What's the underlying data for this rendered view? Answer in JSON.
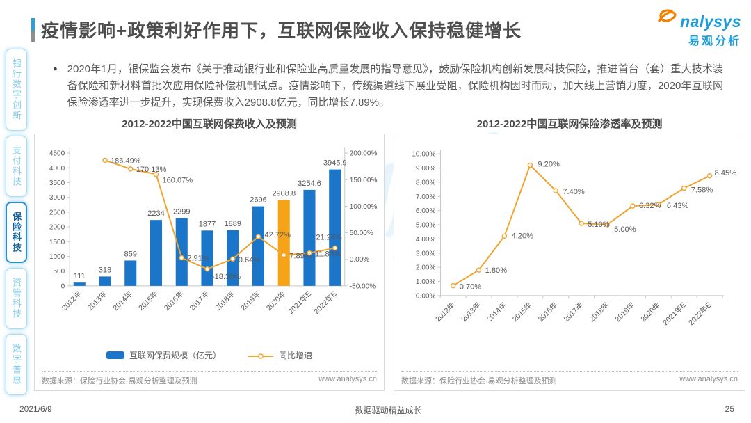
{
  "header": {
    "title": "疫情影响+政策利好作用下，互联网保险收入保持稳健增长"
  },
  "logo": {
    "brand": "analysys",
    "brand_rest": "nalysys",
    "brand_cn": "易观分析"
  },
  "sidebar": {
    "items": [
      {
        "label": "银行数字创新",
        "active": false
      },
      {
        "label": "支付科技",
        "active": false
      },
      {
        "label": "保险科技",
        "active": true
      },
      {
        "label": "资管科技",
        "active": false
      },
      {
        "label": "数字普惠",
        "active": false
      }
    ]
  },
  "bullet": {
    "marker": "●",
    "text": "2020年1月，银保监会发布《关于推动银行业和保险业高质量发展的指导意见》，鼓励保险机构创新发展科技保险，推进首台（套）重大技术装备保险和新材料首批次应用保险补偿机制试点。疫情影响下，传统渠道线下展业受阻，保险机构因时而动，加大线上营销力度，2020年互联网保险渗透率进一步提升，实现保费收入2908.8亿元，同比增长7.89%。"
  },
  "colors": {
    "bar_blue": "#1b75c8",
    "highlight_orange": "#f6a318",
    "line_orange": "#efa430",
    "logo_blue": "#1e9cd7"
  },
  "chart_data": [
    {
      "type": "bar",
      "title": "2012-2022中国互联网保费收入及预测",
      "categories": [
        "2012年",
        "2013年",
        "2014年",
        "2015年",
        "2016年",
        "2017年",
        "2018年",
        "2019年",
        "2020年",
        "2021年E",
        "2022年E"
      ],
      "series": [
        {
          "name": "互联网保费规模（亿元）",
          "type": "bar",
          "highlight_index": 8,
          "values": [
            111,
            318,
            859,
            2234,
            2299,
            1877,
            1889,
            2696,
            2908.8,
            3254.6,
            3945.9
          ],
          "labels": [
            "111",
            "318",
            "859",
            "2234",
            "2299",
            "1877",
            "1889",
            "2696",
            "2908.8",
            "3254.6",
            "3945.9"
          ]
        },
        {
          "name": "同比增速",
          "type": "line",
          "values": [
            null,
            186.49,
            170.13,
            160.07,
            2.91,
            -18.36,
            0.64,
            42.72,
            7.89,
            11.89,
            21.24
          ],
          "labels": [
            null,
            "186.49%",
            "170.13%",
            "160.07%",
            "2.91%",
            "-18.36%",
            "0.64%",
            "42.72%",
            "7.89%",
            "11.89%",
            "21.24%"
          ]
        }
      ],
      "y_left": {
        "ticks": [
          "4500",
          "4000",
          "3500",
          "3000",
          "2500",
          "2000",
          "1500",
          "1000",
          "500",
          "0"
        ],
        "tick_values": [
          4500,
          4000,
          3500,
          3000,
          2500,
          2000,
          1500,
          1000,
          500,
          0
        ],
        "min": 0,
        "max": 4500
      },
      "y_right": {
        "ticks": [
          "200.00%",
          "150.00%",
          "100.00%",
          "50.00%",
          "0.00%",
          "-50.00%"
        ],
        "tick_values": [
          200,
          150,
          100,
          50,
          0,
          -50
        ],
        "min": -50,
        "max": 200
      },
      "grid": false,
      "legend_position": "bottom",
      "source": "数据来源：保险行业协会·易观分析整理及预测",
      "website": "www.analysys.cn"
    },
    {
      "type": "line",
      "title": "2012-2022中国互联网保险渗透率及预测",
      "categories": [
        "2012年",
        "2013年",
        "2014年",
        "2015年",
        "2016年",
        "2017年",
        "2018年",
        "2019年",
        "2020年",
        "2021年E",
        "2022年E"
      ],
      "values": [
        0.7,
        1.8,
        4.2,
        9.2,
        7.4,
        5.1,
        5.0,
        6.32,
        6.43,
        7.58,
        8.45
      ],
      "labels": [
        "0.70%",
        "1.80%",
        "4.20%",
        "9.20%",
        "7.40%",
        "5.10%",
        "5.00%",
        "6.32%",
        "6.43%",
        "7.58%",
        "8.45%"
      ],
      "y": {
        "ticks": [
          "10.00%",
          "9.00%",
          "8.00%",
          "7.00%",
          "6.00%",
          "5.00%",
          "4.00%",
          "3.00%",
          "2.00%",
          "1.00%",
          "0.00%"
        ],
        "tick_values": [
          10,
          9,
          8,
          7,
          6,
          5,
          4,
          3,
          2,
          1,
          0
        ],
        "min": 0,
        "max": 10
      },
      "grid": false,
      "source": "数据来源：保险行业协会·易观分析整理及预测",
      "website": "www.analysys.cn"
    }
  ],
  "footer": {
    "date": "2021/6/9",
    "motto": "数据驱动精益成长",
    "page_number": "25"
  }
}
